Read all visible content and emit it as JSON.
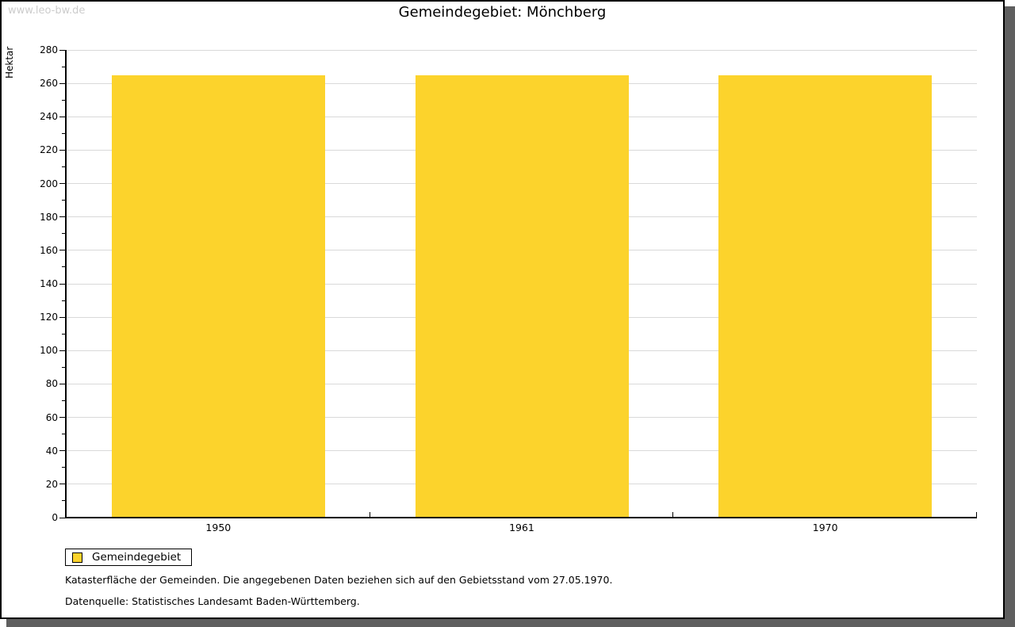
{
  "watermark": "www.leo-bw.de",
  "title": "Gemeindegebiet: Mönchberg",
  "legend": {
    "label": "Gemeindegebiet"
  },
  "footnotes": [
    "Katasterfläche der Gemeinden. Die angegebenen Daten beziehen sich auf den Gebietsstand vom 27.05.1970.",
    "Datenquelle: Statistisches Landesamt Baden-Württemberg."
  ],
  "colors": {
    "bar": "#fcd32c",
    "gridline": "#d9d9d9",
    "axis": "#000000",
    "watermark": "#cccccc",
    "shadow": "#5f5f5f",
    "background": "#ffffff"
  },
  "chart_data": {
    "type": "bar",
    "title": "Gemeindegebiet: Mönchberg",
    "categories": [
      "1950",
      "1961",
      "1970"
    ],
    "series": [
      {
        "name": "Gemeindegebiet",
        "values": [
          265,
          265,
          265
        ]
      }
    ],
    "xlabel": "",
    "ylabel": "Hektar",
    "ylim": [
      0,
      280
    ],
    "ytick_step": 20,
    "minor_tick_step": 10,
    "grid": true,
    "legend_position": "bottom-left",
    "bar_color": "#fcd32c"
  }
}
